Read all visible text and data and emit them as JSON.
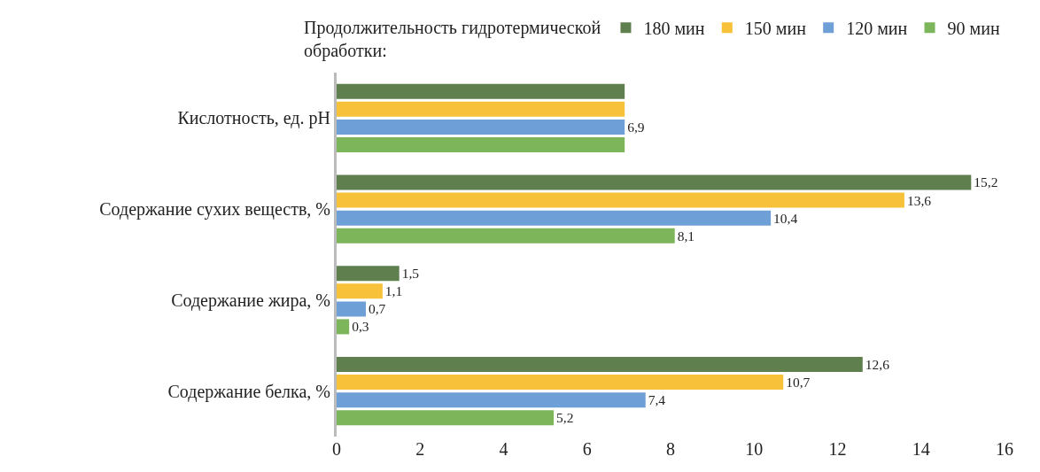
{
  "chart_data": {
    "type": "bar",
    "orientation": "horizontal",
    "legend_title": "Продолжительность гидротермической обработки:",
    "legend": "top right",
    "grid": false,
    "categories": [
      "Кислотность, ед. pH",
      "Содержание сухих веществ, %",
      "Содержание жира, %",
      "Содержание белка, %"
    ],
    "series": [
      {
        "name": "180 мин",
        "color": "#5f7f4f",
        "values": [
          6.9,
          15.2,
          1.5,
          12.6
        ],
        "value_labels": [
          null,
          "15,2",
          "1,5",
          "12,6"
        ]
      },
      {
        "name": "150 мин",
        "color": "#f7c23a",
        "values": [
          6.9,
          13.6,
          1.1,
          10.7
        ],
        "value_labels": [
          null,
          "13,6",
          "1,1",
          "10,7"
        ]
      },
      {
        "name": "120 мин",
        "color": "#6e9fd6",
        "values": [
          6.9,
          10.4,
          0.7,
          7.4
        ],
        "value_labels": [
          "6,9",
          "10,4",
          "0,7",
          "7,4"
        ]
      },
      {
        "name": "90 мин",
        "color": "#7db55b",
        "values": [
          6.9,
          8.1,
          0.3,
          5.2
        ],
        "value_labels": [
          null,
          "8,1",
          "0,3",
          "5,2"
        ]
      }
    ],
    "xlim": [
      0,
      16
    ],
    "xticks": [
      0,
      2,
      4,
      6,
      8,
      10,
      12,
      14,
      16
    ]
  }
}
